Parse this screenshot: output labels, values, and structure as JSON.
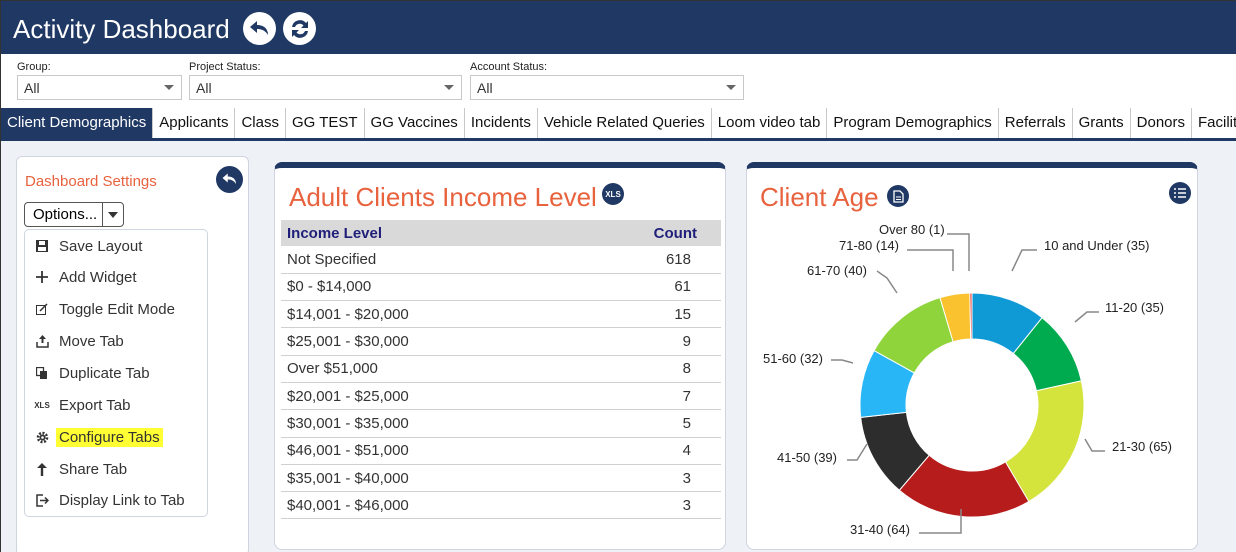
{
  "header": {
    "title": "Activity Dashboard"
  },
  "filters": [
    {
      "label": "Group:",
      "value": "All"
    },
    {
      "label": "Project Status:",
      "value": "All"
    },
    {
      "label": "Account Status:",
      "value": "All"
    }
  ],
  "tabs": [
    "Client Demographics",
    "Applicants",
    "Class",
    "GG TEST",
    "GG Vaccines",
    "Incidents",
    "Vehicle Related Queries",
    "Loom video tab",
    "Program Demographics",
    "Referrals",
    "Grants",
    "Donors",
    "Facility Manag"
  ],
  "settings": {
    "title": "Dashboard Settings",
    "options_label": "Options...",
    "menu": [
      {
        "label": "Save Layout",
        "icon": "save-icon"
      },
      {
        "label": "Add Widget",
        "icon": "plus-icon"
      },
      {
        "label": "Toggle Edit Mode",
        "icon": "edit-icon"
      },
      {
        "label": "Move Tab",
        "icon": "upload-icon"
      },
      {
        "label": "Duplicate Tab",
        "icon": "duplicate-icon"
      },
      {
        "label": "Export Tab",
        "icon": "xls-icon"
      },
      {
        "label": "Configure Tabs",
        "icon": "gear-icon"
      },
      {
        "label": "Share Tab",
        "icon": "arrow-up-icon"
      },
      {
        "label": "Display Link to Tab",
        "icon": "link-icon"
      }
    ],
    "highlighted_item": "Configure Tabs",
    "highlight_color": "#ffff33"
  },
  "income_widget": {
    "title": "Adult Clients Income Level",
    "badge": "XLS",
    "columns": [
      "Income Level",
      "Count"
    ],
    "rows": [
      [
        "Not Specified",
        "618"
      ],
      [
        "$0 - $14,000",
        "61"
      ],
      [
        "$14,001 - $20,000",
        "15"
      ],
      [
        "$25,001 - $30,000",
        "9"
      ],
      [
        "Over $51,000",
        "8"
      ],
      [
        "$20,001 - $25,000",
        "7"
      ],
      [
        "$30,001 - $35,000",
        "5"
      ],
      [
        "$46,001 - $51,000",
        "4"
      ],
      [
        "$35,001 - $40,000",
        "3"
      ],
      [
        "$40,001 - $46,000",
        "3"
      ]
    ]
  },
  "age_widget": {
    "title": "Client Age",
    "chart_data": {
      "type": "pie",
      "subtype": "donut",
      "slices": [
        {
          "label": "10 and Under (35)",
          "value": 35,
          "color": "#0f9ad6"
        },
        {
          "label": "11-20 (35)",
          "value": 35,
          "color": "#00aa4f"
        },
        {
          "label": "21-30 (65)",
          "value": 65,
          "color": "#d4e43c"
        },
        {
          "label": "31-40 (64)",
          "value": 64,
          "color": "#b71c1c"
        },
        {
          "label": "41-50 (39)",
          "value": 39,
          "color": "#2d2d2d"
        },
        {
          "label": "51-60 (32)",
          "value": 32,
          "color": "#29b6f6"
        },
        {
          "label": "61-70 (40)",
          "value": 40,
          "color": "#8ed43a"
        },
        {
          "label": "71-80 (14)",
          "value": 14,
          "color": "#f9c22e"
        },
        {
          "label": "Over 80 (1)",
          "value": 1,
          "color": "#e53935"
        }
      ]
    }
  },
  "colors": {
    "brand": "#1f3864",
    "accent": "#e8623e"
  }
}
